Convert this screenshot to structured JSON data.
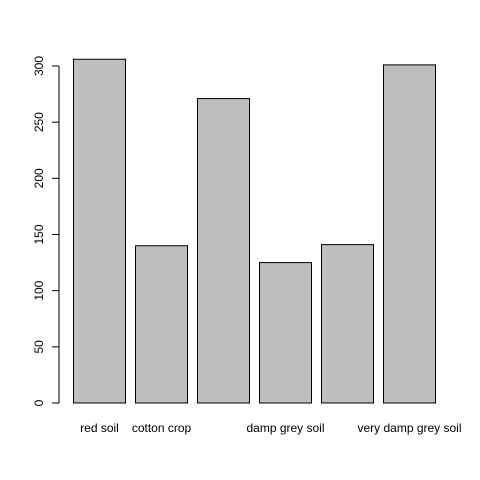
{
  "chart_data": {
    "type": "bar",
    "categories": [
      "red soil",
      "cotton crop",
      "",
      "damp grey soil",
      "",
      "very damp grey soil"
    ],
    "values": [
      306,
      140,
      271,
      125,
      141,
      301
    ],
    "ylim": [
      0,
      300
    ],
    "yticks": [
      0,
      50,
      100,
      150,
      200,
      250,
      300
    ],
    "title": "",
    "xlabel": "",
    "ylabel": "",
    "grid": false,
    "bar_color": "#bebebe",
    "edge_color": "#000000"
  }
}
